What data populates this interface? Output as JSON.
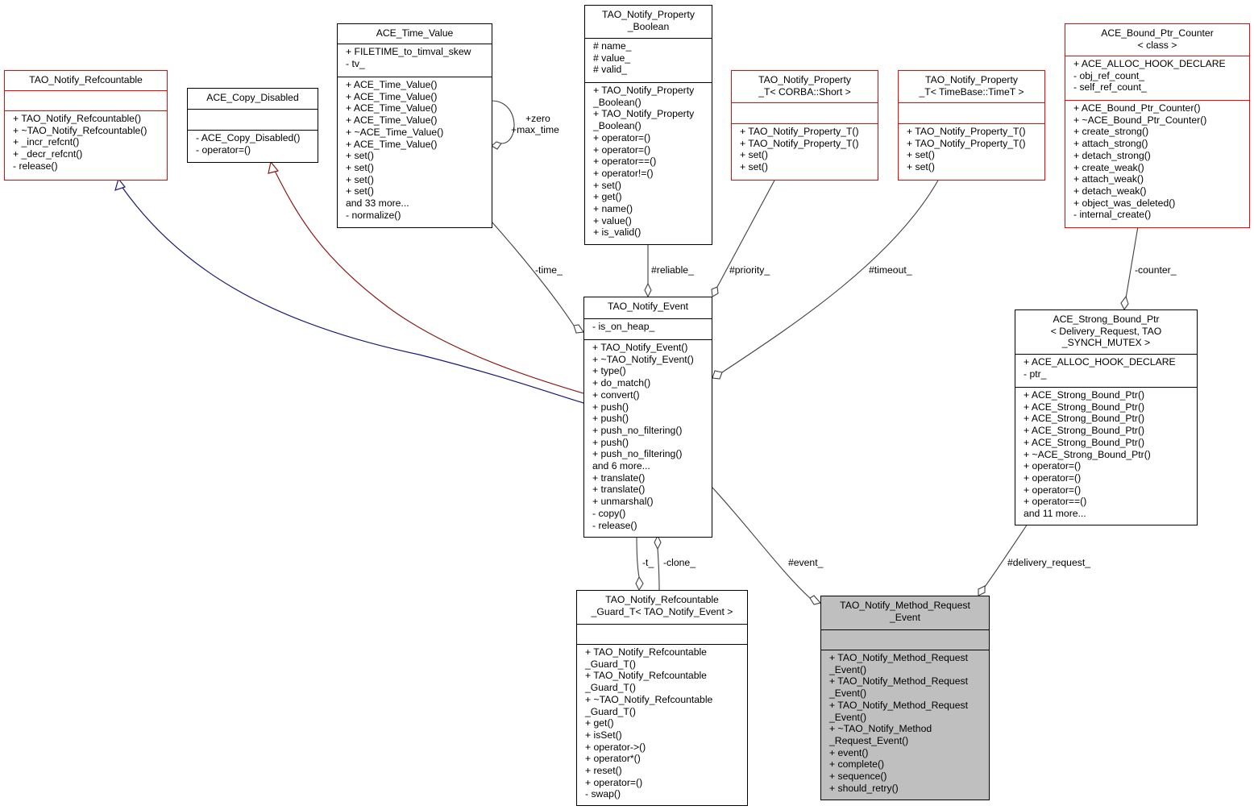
{
  "classes": {
    "refcountable": {
      "title": [
        "TAO_Notify_Refcountable"
      ],
      "attributes": [],
      "methods": [
        "+ TAO_Notify_Refcountable()",
        "+ ~TAO_Notify_Refcountable()",
        "+ _incr_refcnt()",
        "+ _decr_refcnt()",
        "- release()"
      ]
    },
    "copy_disabled": {
      "title": [
        "ACE_Copy_Disabled"
      ],
      "attributes": [],
      "methods": [
        "- ACE_Copy_Disabled()",
        "- operator=()"
      ]
    },
    "time_value": {
      "title": [
        "ACE_Time_Value"
      ],
      "attributes": [
        "+ FILETIME_to_timval_skew",
        "- tv_"
      ],
      "methods": [
        "+ ACE_Time_Value()",
        "+ ACE_Time_Value()",
        "+ ACE_Time_Value()",
        "+ ACE_Time_Value()",
        "+ ~ACE_Time_Value()",
        "+ ACE_Time_Value()",
        "+ set()",
        "+ set()",
        "+ set()",
        "+ set()",
        "and 33 more...",
        "- normalize()"
      ]
    },
    "property_boolean": {
      "title": [
        "TAO_Notify_Property",
        "_Boolean"
      ],
      "attributes": [
        "# name_",
        "# value_",
        "# valid_"
      ],
      "methods": [
        "+ TAO_Notify_Property",
        "_Boolean()",
        "+ TAO_Notify_Property",
        "_Boolean()",
        "+ operator=()",
        "+ operator=()",
        "+ operator==()",
        "+ operator!=()",
        "+ set()",
        "+ get()",
        "+ name()",
        "+ value()",
        "+ is_valid()"
      ]
    },
    "property_short": {
      "title": [
        "TAO_Notify_Property",
        "_T< CORBA::Short >"
      ],
      "attributes": [],
      "methods": [
        "+ TAO_Notify_Property_T()",
        "+ TAO_Notify_Property_T()",
        "+ set()",
        "+ set()"
      ]
    },
    "property_timet": {
      "title": [
        "TAO_Notify_Property",
        "_T< TimeBase::TimeT >"
      ],
      "attributes": [],
      "methods": [
        "+ TAO_Notify_Property_T()",
        "+ TAO_Notify_Property_T()",
        "+ set()",
        "+ set()"
      ]
    },
    "bound_ptr_counter": {
      "title": [
        "ACE_Bound_Ptr_Counter",
        "< class >"
      ],
      "attributes": [
        "+ ACE_ALLOC_HOOK_DECLARE",
        "- obj_ref_count_",
        "- self_ref_count_"
      ],
      "methods": [
        "+ ACE_Bound_Ptr_Counter()",
        "+ ~ACE_Bound_Ptr_Counter()",
        "+ create_strong()",
        "+ attach_strong()",
        "+ detach_strong()",
        "+ create_weak()",
        "+ attach_weak()",
        "+ detach_weak()",
        "+ object_was_deleted()",
        "- internal_create()"
      ]
    },
    "notify_event": {
      "title": [
        "TAO_Notify_Event"
      ],
      "attributes": [
        "- is_on_heap_"
      ],
      "methods": [
        "+ TAO_Notify_Event()",
        "+ ~TAO_Notify_Event()",
        "+ type()",
        "+ do_match()",
        "+ convert()",
        "+ push()",
        "+ push()",
        "+ push_no_filtering()",
        "+ push()",
        "+ push_no_filtering()",
        "and 6 more...",
        "+ translate()",
        "+ translate()",
        "+ unmarshal()",
        "- copy()",
        "- release()"
      ]
    },
    "strong_bound_ptr": {
      "title": [
        "ACE_Strong_Bound_Ptr",
        "< Delivery_Request, TAO",
        "_SYNCH_MUTEX >"
      ],
      "attributes": [
        "+ ACE_ALLOC_HOOK_DECLARE",
        "- ptr_"
      ],
      "methods": [
        "+ ACE_Strong_Bound_Ptr()",
        "+ ACE_Strong_Bound_Ptr()",
        "+ ACE_Strong_Bound_Ptr()",
        "+ ACE_Strong_Bound_Ptr()",
        "+ ACE_Strong_Bound_Ptr()",
        "+ ~ACE_Strong_Bound_Ptr()",
        "+ operator=()",
        "+ operator=()",
        "+ operator=()",
        "+ operator==()",
        "and 11 more..."
      ]
    },
    "refcountable_guard": {
      "title": [
        "TAO_Notify_Refcountable",
        "_Guard_T< TAO_Notify_Event >"
      ],
      "attributes": [],
      "methods": [
        "+ TAO_Notify_Refcountable",
        "_Guard_T()",
        "+ TAO_Notify_Refcountable",
        "_Guard_T()",
        "+ ~TAO_Notify_Refcountable",
        "_Guard_T()",
        "+ get()",
        "+ isSet()",
        "+ operator->()",
        "+ operator*()",
        "+ reset()",
        "+ operator=()",
        "- swap()"
      ]
    },
    "method_request_event": {
      "title": [
        "TAO_Notify_Method_Request",
        "_Event"
      ],
      "attributes": [],
      "methods": [
        "+ TAO_Notify_Method_Request",
        "_Event()",
        "+ TAO_Notify_Method_Request",
        "_Event()",
        "+ TAO_Notify_Method_Request",
        "_Event()",
        "+ ~TAO_Notify_Method",
        "_Request_Event()",
        "+ event()",
        "+ complete()",
        "+ sequence()",
        "+ should_retry()"
      ]
    }
  },
  "edge_labels": {
    "zero": "+zero",
    "max_time": "+max_time",
    "time": "-time_",
    "reliable": "#reliable_",
    "priority": "#priority_",
    "timeout": "#timeout_",
    "counter": "-counter_",
    "t": "-t_",
    "clone": "-clone_",
    "event": "#event_",
    "delivery_request": "#delivery_request_"
  },
  "colors": {
    "inheritance_public": "#191970",
    "inheritance_private": "#8b1a1a",
    "usage": "#404040",
    "undocumented_border": "#ff0000",
    "focus_fill": "#bfbfbf"
  }
}
